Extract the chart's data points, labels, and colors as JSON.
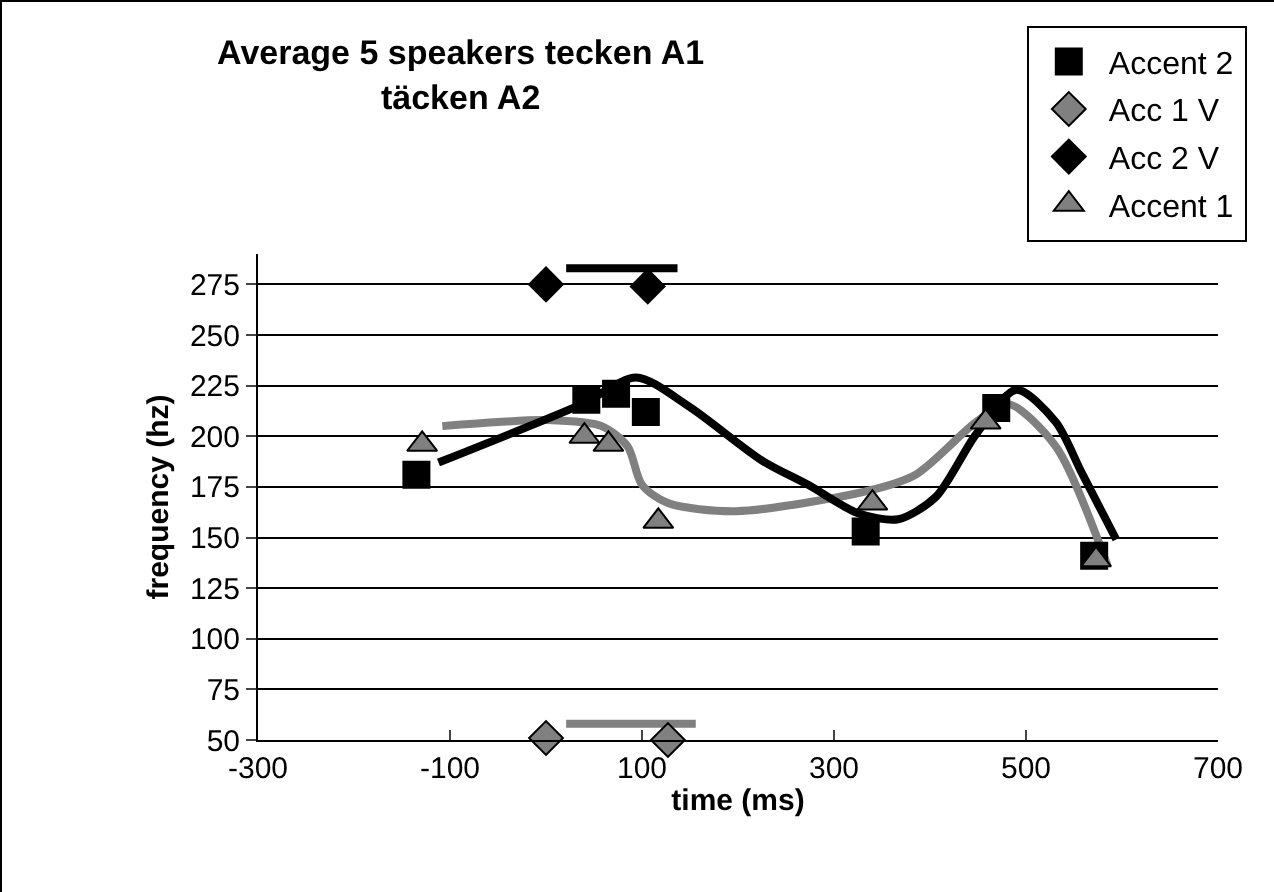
{
  "chart_data": {
    "type": "scatter",
    "title": "Average 5 speakers tecken A1\ntäcken A2",
    "xlabel": "time (ms)",
    "ylabel": "frequency (hz)",
    "xlim": [
      -300,
      700
    ],
    "xticks": [
      -300,
      -100,
      100,
      300,
      500,
      700
    ],
    "ylim": [
      50,
      290
    ],
    "yticks": [
      50,
      75,
      100,
      125,
      150,
      175,
      200,
      225,
      250,
      275
    ],
    "grid": "y",
    "legend": "top right",
    "series": [
      {
        "name": "Accent 1",
        "marker": "triangle",
        "color": "#808080",
        "x": [
          -129,
          40,
          65,
          117,
          340,
          458,
          573
        ],
        "values": [
          196,
          200,
          196,
          158,
          167,
          207,
          139
        ]
      },
      {
        "name": "Accent 2",
        "marker": "square",
        "color": "#000000",
        "x": [
          -135,
          42,
          73,
          104,
          333,
          469,
          571
        ],
        "values": [
          181,
          218,
          221,
          212,
          153,
          214,
          141
        ]
      },
      {
        "name": "Acc 1 V",
        "marker": "diamond",
        "color": "#808080",
        "x": [
          0,
          127
        ],
        "values": [
          51,
          50
        ]
      },
      {
        "name": "Acc 2 V",
        "marker": "diamond",
        "color": "#000000",
        "x": [
          0,
          106
        ],
        "values": [
          275,
          274
        ]
      },
      {
        "type": "line",
        "marker": "none",
        "color": "#808080",
        "x": [
          -108,
          -50,
          0,
          58,
          85,
          100,
          127,
          198,
          335,
          385,
          448,
          481,
          531,
          585
        ],
        "values": [
          205,
          207,
          208,
          205,
          195,
          176,
          167,
          163,
          173,
          181,
          207,
          216,
          195,
          136
        ]
      },
      {
        "type": "line",
        "marker": "none",
        "color": "#000000",
        "x": [
          -112,
          38,
          94,
          148,
          225,
          273,
          325,
          367,
          406,
          448,
          490,
          531,
          558,
          594
        ],
        "values": [
          187,
          216,
          229,
          215,
          188,
          176,
          162,
          159,
          170,
          201,
          223,
          207,
          182,
          149
        ]
      },
      {
        "type": "line",
        "marker": "none",
        "color": "#808080",
        "x": [
          21,
          156
        ],
        "values": [
          58,
          58
        ]
      },
      {
        "type": "line",
        "marker": "none",
        "color": "#000000",
        "x": [
          21,
          137
        ],
        "values": [
          283,
          283
        ]
      }
    ]
  }
}
